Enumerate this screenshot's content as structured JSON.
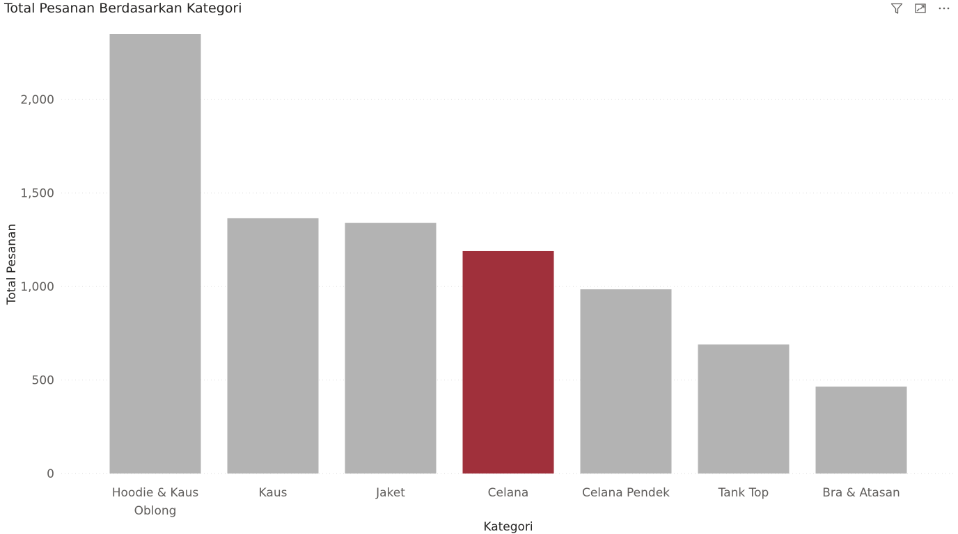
{
  "header": {
    "title": "Total Pesanan Berdasarkan Kategori",
    "icons": [
      "filter-icon",
      "focus-mode-icon",
      "more-options-icon"
    ]
  },
  "colors": {
    "bar_default": "#b3b3b3",
    "bar_highlight": "#a0303b",
    "gridline": "#d9d9d9"
  },
  "chart_data": {
    "type": "bar",
    "title": "Total Pesanan Berdasarkan Kategori",
    "xlabel": "Kategori",
    "ylabel": "Total Pesanan",
    "categories": [
      [
        "Hoodie & Kaus",
        "Oblong"
      ],
      [
        "Kaus"
      ],
      [
        "Jaket"
      ],
      [
        "Celana"
      ],
      [
        "Celana Pendek"
      ],
      [
        "Tank Top"
      ],
      [
        "Bra & Atasan"
      ]
    ],
    "values": [
      2350,
      1365,
      1340,
      1190,
      985,
      690,
      465
    ],
    "highlight_index": 3,
    "ylim": [
      0,
      2350
    ],
    "yticks": [
      0,
      500,
      1000,
      1500,
      2000
    ],
    "ytick_labels": [
      "0",
      "500",
      "1,000",
      "1,500",
      "2,000"
    ],
    "grid": true
  }
}
